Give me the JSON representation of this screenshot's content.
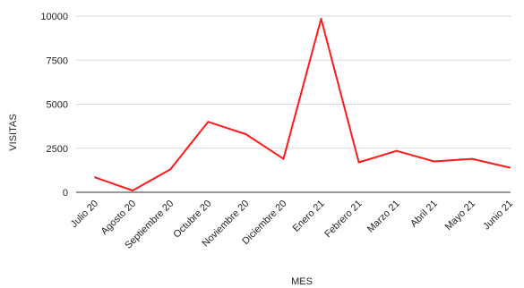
{
  "chart_data": {
    "type": "line",
    "title": "",
    "xlabel": "MES",
    "ylabel": "VISITAS",
    "categories": [
      "Julio 20",
      "Agosto 20",
      "Septiembre 20",
      "Octubre 20",
      "Noviembre 20",
      "Diciembre 20",
      "Enero 21",
      "Febrero 21",
      "Marzo 21",
      "Abril 21",
      "Mayo 21",
      "Junio 21"
    ],
    "series": [
      {
        "values": [
          850,
          100,
          1300,
          4000,
          3300,
          1900,
          9850,
          1700,
          2350,
          1750,
          1900,
          1400
        ],
        "color": "#ff1a1a"
      }
    ],
    "ylim": [
      0,
      10000
    ],
    "yticks": [
      0,
      2500,
      5000,
      7500,
      10000
    ],
    "grid": true,
    "legend": "none"
  }
}
